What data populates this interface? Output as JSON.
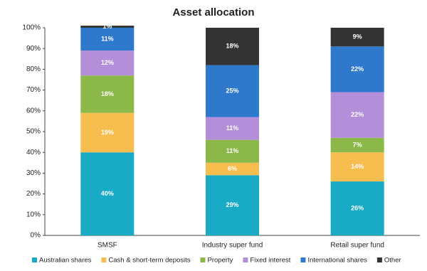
{
  "chart_data": {
    "type": "stacked_bar",
    "title": "Asset allocation",
    "categories": [
      "SMSF",
      "Industry super fund",
      "Retail super fund"
    ],
    "series": [
      {
        "name": "Australian shares",
        "color": "#19abc5",
        "values": [
          40,
          29,
          26
        ],
        "value_labels": [
          "40%",
          "29%",
          "26%"
        ]
      },
      {
        "name": "Cash & short-term deposits",
        "color": "#f7bd4f",
        "values": [
          19,
          6,
          14
        ],
        "value_labels": [
          "19%",
          "6%",
          "14%"
        ]
      },
      {
        "name": "Property",
        "color": "#8cb84a",
        "values": [
          18,
          11,
          7
        ],
        "value_labels": [
          "18%",
          "11%",
          "7%"
        ]
      },
      {
        "name": "Fixed interest",
        "color": "#b48fd9",
        "values": [
          12,
          11,
          22
        ],
        "value_labels": [
          "12%",
          "11%",
          "22%"
        ]
      },
      {
        "name": "International shares",
        "color": "#2f79cd",
        "values": [
          11,
          25,
          22
        ],
        "value_labels": [
          "11%",
          "25%",
          "22%"
        ]
      },
      {
        "name": "Other",
        "color": "#333333",
        "values": [
          1,
          18,
          9
        ],
        "value_labels": [
          "1%",
          "18%",
          "9%"
        ]
      }
    ],
    "ylim": [
      0,
      100
    ],
    "yticks": [
      {
        "value": 0,
        "label": "0%"
      },
      {
        "value": 10,
        "label": "10%"
      },
      {
        "value": 20,
        "label": "20%"
      },
      {
        "value": 30,
        "label": "30%"
      },
      {
        "value": 40,
        "label": "40%"
      },
      {
        "value": 50,
        "label": "50%"
      },
      {
        "value": 60,
        "label": "60%"
      },
      {
        "value": 70,
        "label": "70%"
      },
      {
        "value": 80,
        "label": "80%"
      },
      {
        "value": 90,
        "label": "90%"
      },
      {
        "value": 100,
        "label": "100%"
      }
    ],
    "legend": "bottom"
  }
}
